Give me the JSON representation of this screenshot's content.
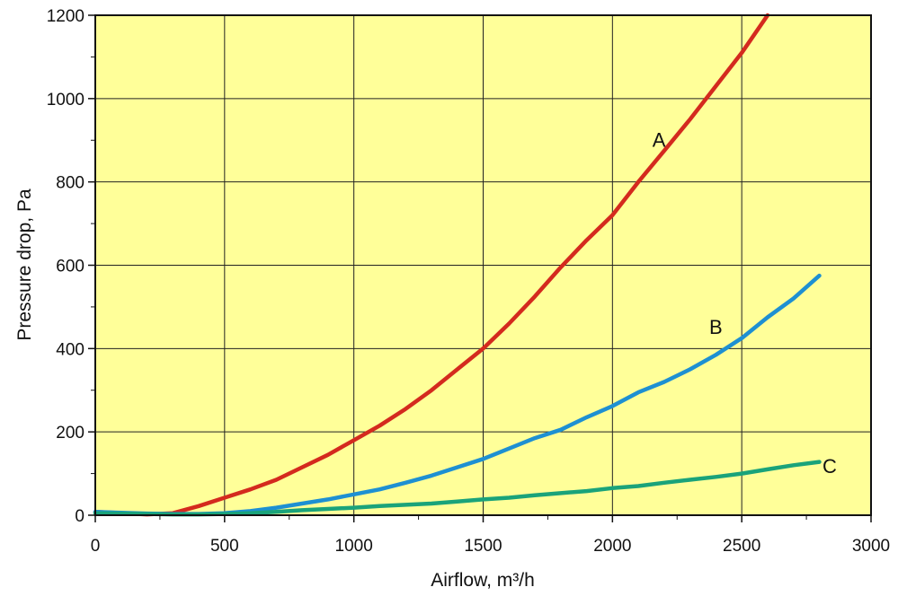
{
  "chart_data": {
    "type": "line",
    "title": "",
    "xlabel": "Airflow, m³/h",
    "ylabel": "Pressure drop, Pa",
    "xlim": [
      0,
      3000
    ],
    "ylim": [
      0,
      1200
    ],
    "x_ticks": [
      0,
      500,
      1000,
      1500,
      2000,
      2500,
      3000
    ],
    "y_ticks": [
      0,
      200,
      400,
      600,
      800,
      1000,
      1200
    ],
    "grid": true,
    "legend": "none",
    "plot_background": "#ffff99",
    "series": [
      {
        "name": "A",
        "color": "#d42a1e",
        "x": [
          0,
          100,
          200,
          300,
          400,
          500,
          600,
          700,
          800,
          900,
          1000,
          1100,
          1200,
          1300,
          1400,
          1500,
          1600,
          1700,
          1800,
          1900,
          2000,
          2100,
          2200,
          2300,
          2400,
          2500,
          2600
        ],
        "y": [
          8,
          5,
          2,
          5,
          22,
          42,
          62,
          85,
          115,
          145,
          180,
          215,
          255,
          300,
          350,
          400,
          460,
          525,
          595,
          660,
          720,
          800,
          875,
          950,
          1030,
          1110,
          1200
        ]
      },
      {
        "name": "B",
        "color": "#1e90d2",
        "x": [
          0,
          100,
          200,
          300,
          400,
          500,
          600,
          700,
          800,
          900,
          1000,
          1100,
          1200,
          1300,
          1400,
          1500,
          1600,
          1700,
          1800,
          1900,
          2000,
          2100,
          2200,
          2300,
          2400,
          2500,
          2600,
          2700,
          2800
        ],
        "y": [
          8,
          6,
          4,
          3,
          3,
          5,
          10,
          18,
          28,
          38,
          50,
          62,
          78,
          95,
          115,
          135,
          160,
          185,
          205,
          235,
          262,
          295,
          320,
          350,
          385,
          425,
          475,
          520,
          575
        ]
      },
      {
        "name": "C",
        "color": "#1aa37a",
        "x": [
          0,
          100,
          200,
          300,
          400,
          500,
          600,
          700,
          800,
          900,
          1000,
          1100,
          1200,
          1300,
          1400,
          1500,
          1600,
          1700,
          1800,
          1900,
          2000,
          2100,
          2200,
          2300,
          2400,
          2500,
          2600,
          2700,
          2800
        ],
        "y": [
          5,
          4,
          3,
          2,
          2,
          3,
          5,
          8,
          12,
          15,
          18,
          22,
          25,
          28,
          33,
          38,
          42,
          48,
          53,
          58,
          65,
          70,
          78,
          85,
          92,
          100,
          110,
          120,
          128
        ]
      }
    ]
  }
}
